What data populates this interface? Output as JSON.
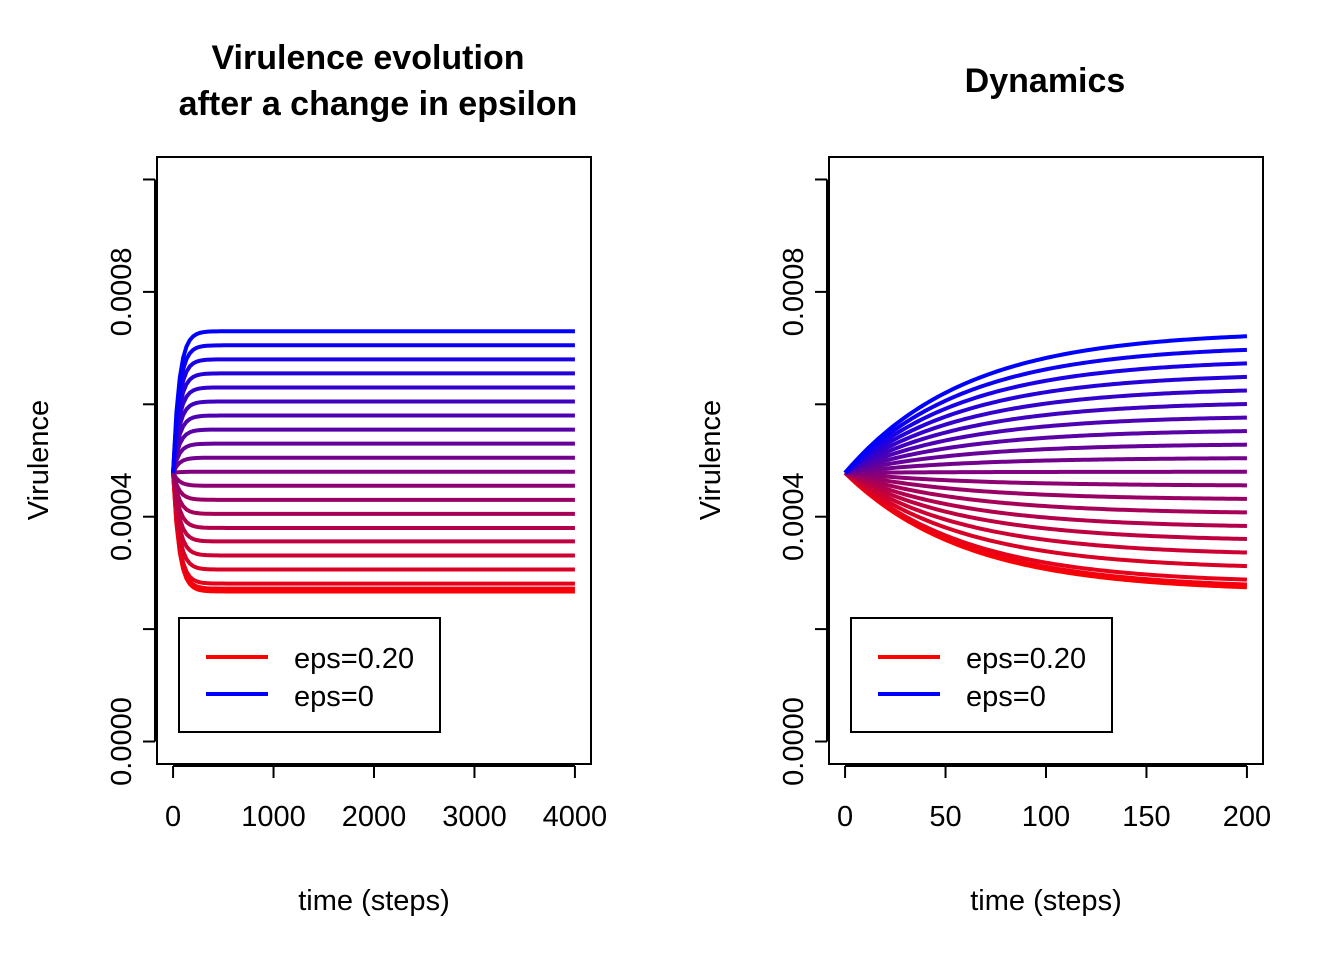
{
  "chart_data": [
    {
      "type": "line",
      "title_lines": [
        "Virulence evolution",
        "after a change in epsilon"
      ],
      "xlabel": "time (steps)",
      "ylabel": "Virulence",
      "xlim": [
        -160,
        4160
      ],
      "ylim": [
        -4e-05,
        0.00104
      ],
      "x_ticks": [
        0,
        1000,
        2000,
        3000,
        4000
      ],
      "x_tick_labels": [
        "0",
        "1000",
        "2000",
        "3000",
        "4000"
      ],
      "y_ticks": [
        0,
        0.0002,
        0.0004,
        0.0006,
        0.0008,
        0.001
      ],
      "y_tick_labels": [
        "0.0000",
        "",
        "0.0004",
        "",
        "0.0008",
        ""
      ],
      "t_max": 4000,
      "time_constant": 60,
      "start_value": 0.000478,
      "series_count": 21,
      "final_values": [
        0.000267,
        0.000272,
        0.000281,
        0.000306,
        0.000331,
        0.000356,
        0.00038,
        0.000405,
        0.00043,
        0.000455,
        0.00048,
        0.000505,
        0.00053,
        0.000555,
        0.00058,
        0.000605,
        0.00063,
        0.000655,
        0.00068,
        0.000705,
        0.00073
      ],
      "series_color_start": "#ff0000",
      "series_color_end": "#0000ff",
      "legend": {
        "position": "bottom-left",
        "entries": [
          {
            "label": "eps=0.20",
            "color": "#ff0000"
          },
          {
            "label": "eps=0"
          }
        ]
      }
    },
    {
      "type": "line",
      "title_lines": [
        "Dynamics"
      ],
      "xlabel": "time (steps)",
      "ylabel": "Virulence",
      "xlim": [
        -8,
        208
      ],
      "ylim": [
        -4e-05,
        0.00104
      ],
      "x_ticks": [
        0,
        50,
        100,
        150,
        200
      ],
      "x_tick_labels": [
        "0",
        "50",
        "100",
        "150",
        "200"
      ],
      "y_ticks": [
        0,
        0.0002,
        0.0004,
        0.0006,
        0.0008,
        0.001
      ],
      "y_tick_labels": [
        "0.0000",
        "",
        "0.0004",
        "",
        "0.0008",
        ""
      ],
      "t_max": 200,
      "time_constant": 60,
      "start_value": 0.000478,
      "series_count": 21,
      "final_values": [
        0.000267,
        0.000272,
        0.000281,
        0.000306,
        0.000331,
        0.000356,
        0.00038,
        0.000405,
        0.00043,
        0.000455,
        0.00048,
        0.000505,
        0.00053,
        0.000555,
        0.00058,
        0.000605,
        0.00063,
        0.000655,
        0.00068,
        0.000705,
        0.00073
      ],
      "series_color_start": "#ff0000",
      "series_color_end": "#0000ff",
      "legend": {
        "position": "bottom-left",
        "entries": [
          {
            "label": "eps=0.20",
            "color": "#ff0000"
          },
          {
            "label": "eps=0"
          }
        ]
      }
    }
  ]
}
